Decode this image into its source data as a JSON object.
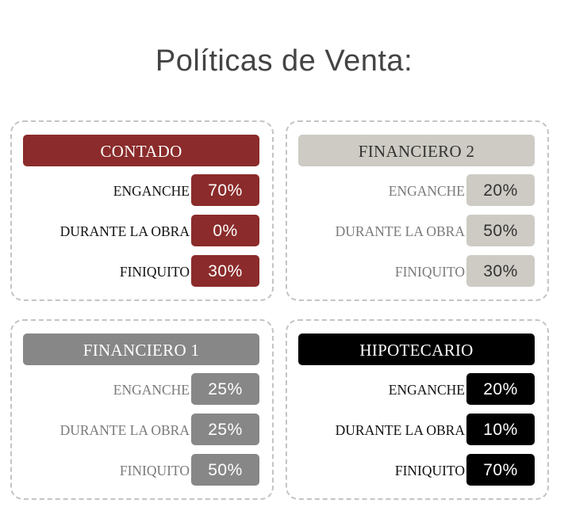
{
  "title": "Políticas de Venta:",
  "colors": {
    "contado": "#8b2b2b",
    "financiero_2": "#cdcbc4",
    "financiero_1": "#878787",
    "hipotecario": "#000000"
  },
  "plans": [
    {
      "name": "CONTADO",
      "rows": [
        {
          "label": "ENGANCHE",
          "value": "70%"
        },
        {
          "label": "DURANTE LA OBRA",
          "value": "0%"
        },
        {
          "label": "FINIQUITO",
          "value": "30%"
        }
      ]
    },
    {
      "name": "FINANCIERO 2",
      "rows": [
        {
          "label": "ENGANCHE",
          "value": "20%"
        },
        {
          "label": "DURANTE LA OBRA",
          "value": "50%"
        },
        {
          "label": "FINIQUITO",
          "value": "30%"
        }
      ]
    },
    {
      "name": "FINANCIERO 1",
      "rows": [
        {
          "label": "ENGANCHE",
          "value": "25%"
        },
        {
          "label": "DURANTE LA OBRA",
          "value": "25%"
        },
        {
          "label": "FINIQUITO",
          "value": "50%"
        }
      ]
    },
    {
      "name": "HIPOTECARIO",
      "rows": [
        {
          "label": "ENGANCHE",
          "value": "20%"
        },
        {
          "label": "DURANTE LA OBRA",
          "value": "10%"
        },
        {
          "label": "FINIQUITO",
          "value": "70%"
        }
      ]
    }
  ]
}
